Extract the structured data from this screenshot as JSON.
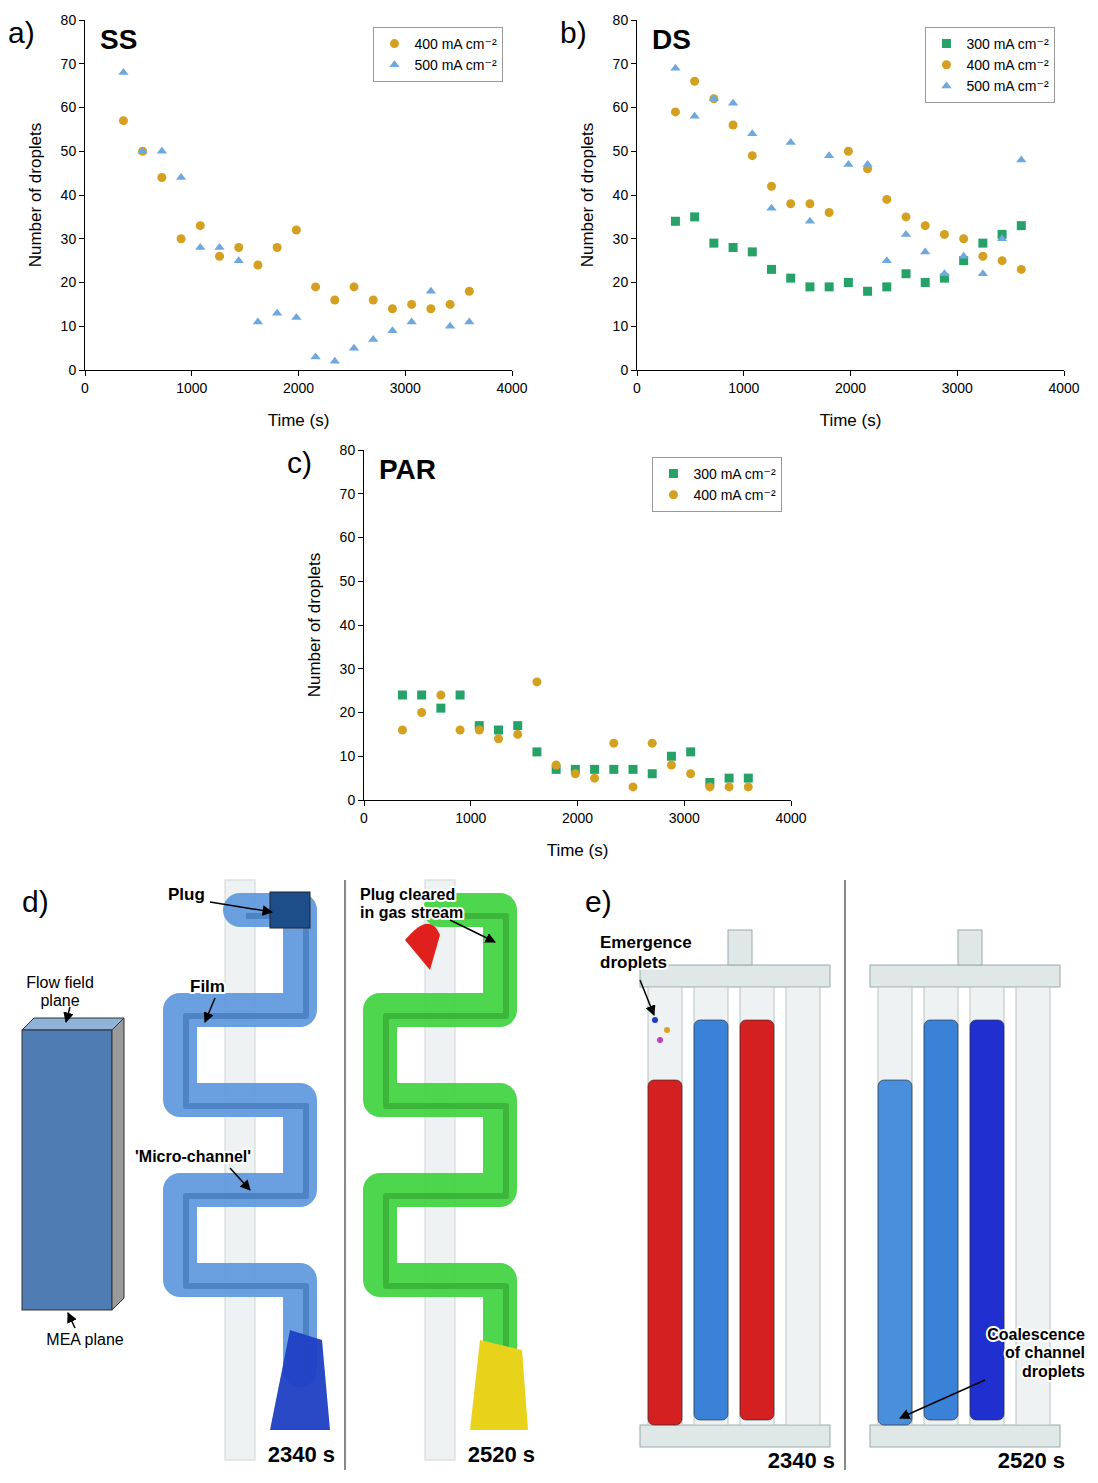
{
  "chart_data": [
    {
      "type": "scatter",
      "panel": "a)",
      "title": "SS",
      "x_label": "Time (s)",
      "y_label": "Number of droplets",
      "xlim": [
        0,
        4000
      ],
      "xticks": [
        0,
        1000,
        2000,
        3000,
        4000
      ],
      "ylim": [
        0,
        80
      ],
      "yticks": [
        0,
        10,
        20,
        30,
        40,
        50,
        60,
        70,
        80
      ],
      "grid": false,
      "legend": "upper right",
      "x": [
        360,
        540,
        720,
        900,
        1080,
        1260,
        1440,
        1620,
        1800,
        1980,
        2160,
        2340,
        2520,
        2700,
        2880,
        3060,
        3240,
        3420,
        3600
      ],
      "series": [
        {
          "name": "400 mA cm⁻²",
          "color": "#d4a020",
          "marker": "circle",
          "values": [
            57,
            50,
            44,
            30,
            33,
            26,
            28,
            24,
            28,
            32,
            19,
            16,
            19,
            16,
            14,
            15,
            14,
            15,
            18
          ]
        },
        {
          "name": "500 mA cm⁻²",
          "color": "#6fa8dc",
          "marker": "triangle-up",
          "values": [
            68,
            50,
            50,
            44,
            28,
            28,
            25,
            11,
            13,
            12,
            3,
            2,
            5,
            7,
            9,
            11,
            18,
            10,
            11
          ]
        }
      ]
    },
    {
      "type": "scatter",
      "panel": "b)",
      "title": "DS",
      "x_label": "Time (s)",
      "y_label": "Number of droplets",
      "xlim": [
        0,
        4000
      ],
      "xticks": [
        0,
        1000,
        2000,
        3000,
        4000
      ],
      "ylim": [
        0,
        80
      ],
      "yticks": [
        0,
        10,
        20,
        30,
        40,
        50,
        60,
        70,
        80
      ],
      "grid": false,
      "legend": "upper right",
      "x": [
        360,
        540,
        720,
        900,
        1080,
        1260,
        1440,
        1620,
        1800,
        1980,
        2160,
        2340,
        2520,
        2700,
        2880,
        3060,
        3240,
        3420,
        3600
      ],
      "series": [
        {
          "name": "300 mA cm⁻²",
          "color": "#26a269",
          "marker": "square",
          "values": [
            34,
            35,
            29,
            28,
            27,
            23,
            21,
            19,
            19,
            20,
            18,
            19,
            22,
            20,
            21,
            25,
            29,
            31,
            33
          ]
        },
        {
          "name": "400 mA cm⁻²",
          "color": "#d4a020",
          "marker": "circle",
          "values": [
            59,
            66,
            62,
            56,
            49,
            42,
            38,
            38,
            36,
            50,
            46,
            39,
            35,
            33,
            31,
            30,
            26,
            25,
            23
          ]
        },
        {
          "name": "500 mA cm⁻²",
          "color": "#6fa8dc",
          "marker": "triangle-up",
          "values": [
            69,
            58,
            62,
            61,
            54,
            37,
            52,
            34,
            49,
            47,
            47,
            25,
            31,
            27,
            22,
            26,
            22,
            30,
            48
          ]
        }
      ]
    },
    {
      "type": "scatter",
      "panel": "c)",
      "title": "PAR",
      "x_label": "Time (s)",
      "y_label": "Number of droplets",
      "xlim": [
        0,
        4000
      ],
      "xticks": [
        0,
        1000,
        2000,
        3000,
        4000
      ],
      "ylim": [
        0,
        80
      ],
      "yticks": [
        0,
        10,
        20,
        30,
        40,
        50,
        60,
        70,
        80
      ],
      "grid": false,
      "legend": "upper right",
      "x": [
        360,
        540,
        720,
        900,
        1080,
        1260,
        1440,
        1620,
        1800,
        1980,
        2160,
        2340,
        2520,
        2700,
        2880,
        3060,
        3240,
        3420,
        3600
      ],
      "series": [
        {
          "name": "300 mA cm⁻²",
          "color": "#26a269",
          "marker": "square",
          "values": [
            24,
            24,
            21,
            24,
            17,
            16,
            17,
            11,
            7,
            7,
            7,
            7,
            7,
            6,
            10,
            11,
            4,
            5,
            5
          ]
        },
        {
          "name": "400 mA cm⁻²",
          "color": "#d4a020",
          "marker": "circle",
          "values": [
            16,
            20,
            24,
            16,
            16,
            14,
            15,
            27,
            8,
            6,
            5,
            13,
            3,
            13,
            8,
            6,
            3,
            3,
            3
          ]
        }
      ]
    }
  ],
  "diagram": {
    "panels": [
      {
        "label": "d)",
        "plane_labels": [
          "Flow field plane",
          "MEA plane"
        ],
        "frames": [
          {
            "time": "2340 s",
            "callouts": [
              "Plug",
              "Film",
              "'Micro-channel'"
            ]
          },
          {
            "time": "2520 s",
            "callouts": [
              "Plug cleared in gas stream"
            ]
          }
        ]
      },
      {
        "label": "e)",
        "frames": [
          {
            "time": "2340 s",
            "callouts": [
              "Emergence droplets"
            ]
          },
          {
            "time": "2520 s",
            "callouts": [
              "Coalescence of channel droplets"
            ]
          }
        ]
      }
    ]
  }
}
